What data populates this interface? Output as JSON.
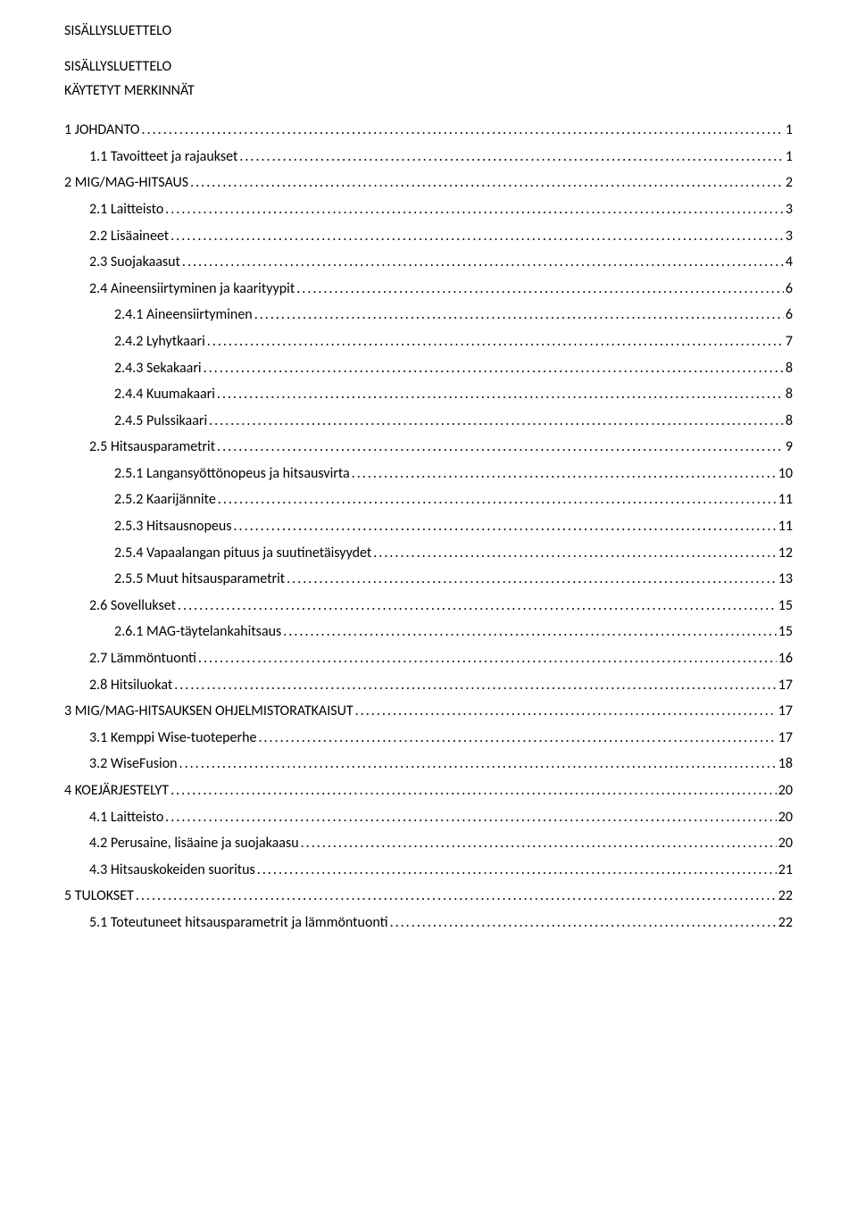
{
  "headings": {
    "title1": "SISÄLLYSLUETTELO",
    "title2": "SISÄLLYSLUETTELO",
    "title3": "KÄYTETYT MERKINNÄT"
  },
  "toc": [
    {
      "label": "1 JOHDANTO",
      "page": "1",
      "indent": 0
    },
    {
      "label": "1.1 Tavoitteet ja rajaukset",
      "page": "1",
      "indent": 1
    },
    {
      "label": "2 MIG/MAG-HITSAUS",
      "page": "2",
      "indent": 0
    },
    {
      "label": "2.1 Laitteisto",
      "page": "3",
      "indent": 1
    },
    {
      "label": "2.2 Lisäaineet",
      "page": "3",
      "indent": 1
    },
    {
      "label": "2.3 Suojakaasut",
      "page": "4",
      "indent": 1
    },
    {
      "label": "2.4 Aineensiirtyminen ja kaarityypit",
      "page": "6",
      "indent": 1
    },
    {
      "label": "2.4.1 Aineensiirtyminen",
      "page": "6",
      "indent": 2
    },
    {
      "label": "2.4.2 Lyhytkaari",
      "page": "7",
      "indent": 2
    },
    {
      "label": "2.4.3 Sekakaari",
      "page": "8",
      "indent": 2
    },
    {
      "label": "2.4.4 Kuumakaari",
      "page": "8",
      "indent": 2
    },
    {
      "label": "2.4.5 Pulssikaari",
      "page": "8",
      "indent": 2
    },
    {
      "label": "2.5 Hitsausparametrit",
      "page": "9",
      "indent": 1
    },
    {
      "label": "2.5.1 Langansyöttönopeus ja hitsausvirta",
      "page": "10",
      "indent": 2
    },
    {
      "label": "2.5.2 Kaarijännite",
      "page": "11",
      "indent": 2
    },
    {
      "label": "2.5.3 Hitsausnopeus",
      "page": "11",
      "indent": 2
    },
    {
      "label": "2.5.4 Vapaalangan pituus ja suutinetäisyydet",
      "page": "12",
      "indent": 2
    },
    {
      "label": "2.5.5 Muut hitsausparametrit",
      "page": "13",
      "indent": 2
    },
    {
      "label": "2.6 Sovellukset",
      "page": "15",
      "indent": 1
    },
    {
      "label": "2.6.1 MAG-täytelankahitsaus",
      "page": "15",
      "indent": 2
    },
    {
      "label": "2.7 Lämmöntuonti",
      "page": "16",
      "indent": 1
    },
    {
      "label": "2.8 Hitsiluokat",
      "page": "17",
      "indent": 1
    },
    {
      "label": "3 MIG/MAG-HITSAUKSEN OHJELMISTORATKAISUT",
      "page": "17",
      "indent": 0
    },
    {
      "label": "3.1 Kemppi Wise-tuoteperhe",
      "page": "17",
      "indent": 1
    },
    {
      "label": "3.2 WiseFusion",
      "page": "18",
      "indent": 1
    },
    {
      "label": "4 KOEJÄRJESTELYT",
      "page": "20",
      "indent": 0
    },
    {
      "label": "4.1 Laitteisto",
      "page": "20",
      "indent": 1
    },
    {
      "label": "4.2 Perusaine, lisäaine ja suojakaasu",
      "page": "20",
      "indent": 1
    },
    {
      "label": "4.3 Hitsauskokeiden suoritus",
      "page": "21",
      "indent": 1
    },
    {
      "label": "5 TULOKSET",
      "page": "22",
      "indent": 0
    },
    {
      "label": "5.1 Toteutuneet hitsausparametrit ja lämmöntuonti",
      "page": "22",
      "indent": 1
    }
  ]
}
